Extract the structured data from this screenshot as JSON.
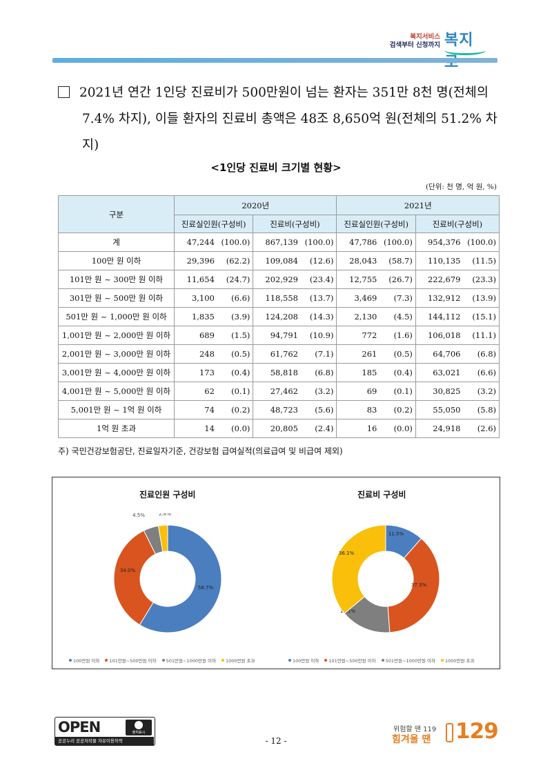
{
  "header": {
    "logo_line1": "복지서비스",
    "logo_line2": "검색부터 신청까지",
    "logo_mark": "복지로"
  },
  "intro": {
    "line1": "2021년 연간 1인당 진료비가 500만원이 넘는 환자는 351만 8천 명(전체의",
    "line2": "7.4% 차지), 이들 환자의 진료비 총액은 48조 8,650억 원(전체의 51.2% 차지)"
  },
  "table": {
    "title": "<1인당 진료비 크기별 현황>",
    "unit": "(단위: 천 명, 억 원, %)",
    "header_category": "구분",
    "year_2020": "2020년",
    "year_2021": "2021년",
    "col_patients": "진료실인원(구성비)",
    "col_cost": "진료비(구성비)",
    "rows": [
      {
        "cat": "계",
        "p20": "47,244",
        "pp20": "(100.0)",
        "c20": "867,139",
        "cp20": "(100.0)",
        "p21": "47,786",
        "pp21": "(100.0)",
        "c21": "954,376",
        "cp21": "(100.0)"
      },
      {
        "cat": "100만 원 이하",
        "p20": "29,396",
        "pp20": "(62.2)",
        "c20": "109,084",
        "cp20": "(12.6)",
        "p21": "28,043",
        "pp21": "(58.7)",
        "c21": "110,135",
        "cp21": "(11.5)"
      },
      {
        "cat": "101만 원 ~ 300만 원 이하",
        "p20": "11,654",
        "pp20": "(24.7)",
        "c20": "202,929",
        "cp20": "(23.4)",
        "p21": "12,755",
        "pp21": "(26.7)",
        "c21": "222,679",
        "cp21": "(23.3)"
      },
      {
        "cat": "301만 원 ~ 500만 원 이하",
        "p20": "3,100",
        "pp20": "(6.6)",
        "c20": "118,558",
        "cp20": "(13.7)",
        "p21": "3,469",
        "pp21": "(7.3)",
        "c21": "132,912",
        "cp21": "(13.9)"
      },
      {
        "cat": "501만 원 ~ 1,000만 원 이하",
        "p20": "1,835",
        "pp20": "(3.9)",
        "c20": "124,208",
        "cp20": "(14.3)",
        "p21": "2,130",
        "pp21": "(4.5)",
        "c21": "144,112",
        "cp21": "(15.1)"
      },
      {
        "cat": "1,001만 원 ~ 2,000만 원 이하",
        "p20": "689",
        "pp20": "(1.5)",
        "c20": "94,791",
        "cp20": "(10.9)",
        "p21": "772",
        "pp21": "(1.6)",
        "c21": "106,018",
        "cp21": "(11.1)"
      },
      {
        "cat": "2,001만 원 ~ 3,000만 원 이하",
        "p20": "248",
        "pp20": "(0.5)",
        "c20": "61,762",
        "cp20": "(7.1)",
        "p21": "261",
        "pp21": "(0.5)",
        "c21": "64,706",
        "cp21": "(6.8)"
      },
      {
        "cat": "3,001만 원 ~ 4,000만 원 이하",
        "p20": "173",
        "pp20": "(0.4)",
        "c20": "58,818",
        "cp20": "(6.8)",
        "p21": "185",
        "pp21": "(0.4)",
        "c21": "63,021",
        "cp21": "(6.6)"
      },
      {
        "cat": "4,001만 원 ~ 5,000만 원 이하",
        "p20": "62",
        "pp20": "(0.1)",
        "c20": "27,462",
        "cp20": "(3.2)",
        "p21": "69",
        "pp21": "(0.1)",
        "c21": "30,825",
        "cp21": "(3.2)"
      },
      {
        "cat": "5,001만 원 ~ 1억 원 이하",
        "p20": "74",
        "pp20": "(0.2)",
        "c20": "48,723",
        "cp20": "(5.6)",
        "p21": "83",
        "pp21": "(0.2)",
        "c21": "55,050",
        "cp21": "(5.8)"
      },
      {
        "cat": "1억 원 초과",
        "p20": "14",
        "pp20": "(0.0)",
        "c20": "20,805",
        "cp20": "(2.4)",
        "p21": "16",
        "pp21": "(0.0)",
        "c21": "24,918",
        "cp21": "(2.6)"
      }
    ],
    "note": "주) 국민건강보험공단, 진료일자기준, 건강보험 급여실적(의료급여 및 비급여 제외)"
  },
  "colors": {
    "c1": "#4a7ebf",
    "c2": "#d9541e",
    "c3": "#7f7f7f",
    "c4": "#f9bf0a"
  },
  "chart_data": [
    {
      "type": "pie",
      "title": "진료인원 구성비",
      "categories": [
        "100만원 이하",
        "101만원~500만원 이하",
        "501만원~1000만원 이하",
        "1000만원 초과"
      ],
      "values": [
        58.7,
        34.0,
        4.5,
        2.8
      ],
      "labels": [
        "58.7%",
        "34.0%",
        "4.5%",
        "2.8%"
      ],
      "legend": "bottom"
    },
    {
      "type": "pie",
      "title": "진료비 구성비",
      "categories": [
        "100만원 이하",
        "101만원~500만원 이하",
        "501만원~1000만원 이하",
        "1000만원 초과"
      ],
      "values": [
        11.5,
        37.3,
        15.1,
        36.1
      ],
      "labels": [
        "11.5%",
        "37.3%",
        "15.1%",
        "36.1%"
      ],
      "legend": "bottom"
    }
  ],
  "footer": {
    "open_word": "OPEN",
    "open_badge": "출처표시",
    "open_strip": "공공누리  공공저작물 자유이용허락",
    "page": "- 12 -",
    "hotline_small": "위험할 땐 119",
    "hotline_big": "힘겨울 땐",
    "hotline_num": "129"
  }
}
